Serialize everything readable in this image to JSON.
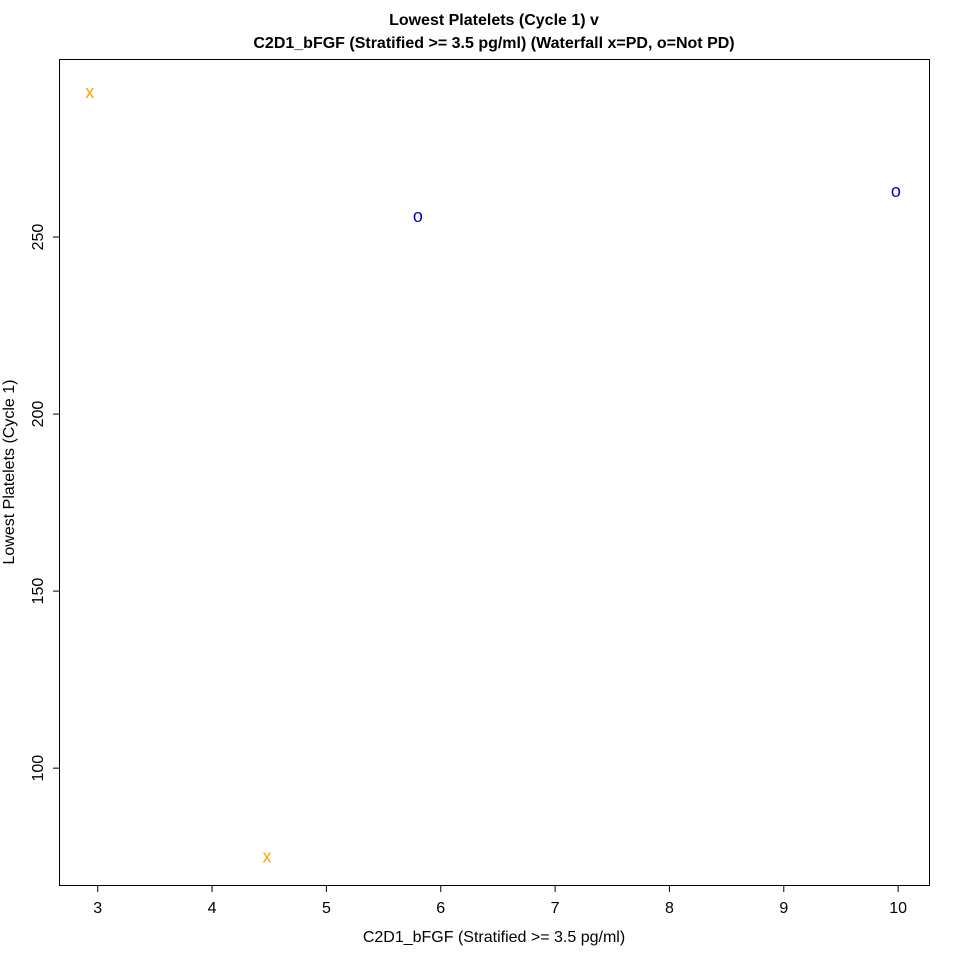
{
  "chart_data": {
    "type": "scatter",
    "title_line1": "Lowest Platelets (Cycle 1) v",
    "title_line2": "C2D1_bFGF (Stratified >= 3.5 pg/ml) (Waterfall x=PD, o=Not PD)",
    "xlabel": "C2D1_bFGF (Stratified >= 3.5 pg/ml)",
    "ylabel": "Lowest Platelets (Cycle 1)",
    "xlim": [
      2.67,
      10.27
    ],
    "ylim": [
      67,
      300
    ],
    "xticks": [
      3,
      4,
      5,
      6,
      7,
      8,
      9,
      10
    ],
    "yticks": [
      100,
      150,
      200,
      250
    ],
    "grid": false,
    "points": [
      {
        "x": 2.93,
        "y": 291,
        "marker": "x",
        "color": "#FFA500"
      },
      {
        "x": 4.48,
        "y": 75,
        "marker": "x",
        "color": "#FFA500"
      },
      {
        "x": 5.8,
        "y": 256,
        "marker": "o",
        "color": "#0000CD"
      },
      {
        "x": 9.98,
        "y": 263,
        "marker": "o",
        "color": "#0000CD"
      }
    ]
  }
}
